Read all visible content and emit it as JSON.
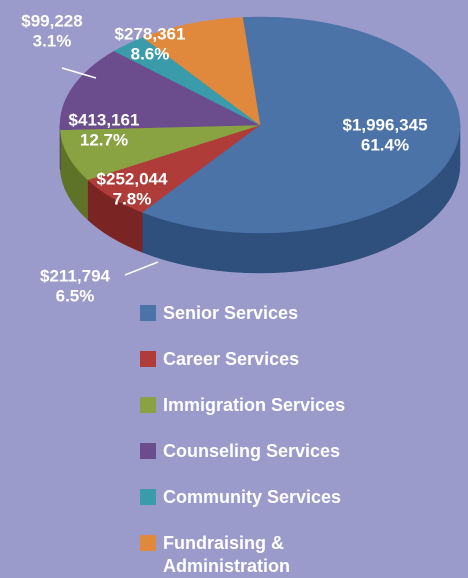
{
  "chart_data": {
    "type": "pie",
    "categories": [
      "Senior Services",
      "Career Services",
      "Immigration Services",
      "Counseling Services",
      "Community Services",
      "Fundraising & Administration"
    ],
    "values": [
      1996345,
      211794,
      252044,
      413161,
      99228,
      278361
    ],
    "value_labels": [
      "$1,996,345",
      "$211,794",
      "$252,044",
      "$413,161",
      "$99,228",
      "$278,361"
    ],
    "shares": [
      61.4,
      6.5,
      7.8,
      12.7,
      3.1,
      8.6
    ],
    "share_labels": [
      "61.4%",
      "6.5%",
      "7.8%",
      "12.7%",
      "3.1%",
      "8.6%"
    ],
    "colors": [
      "#4b73a8",
      "#b03c3a",
      "#8aa342",
      "#6b4c8c",
      "#3a9cab",
      "#e0883b"
    ],
    "side_colors": [
      "#2f4f7c",
      "#7a2524",
      "#5e7328",
      "#4a3263",
      "#246c78",
      "#a95f22"
    ]
  }
}
